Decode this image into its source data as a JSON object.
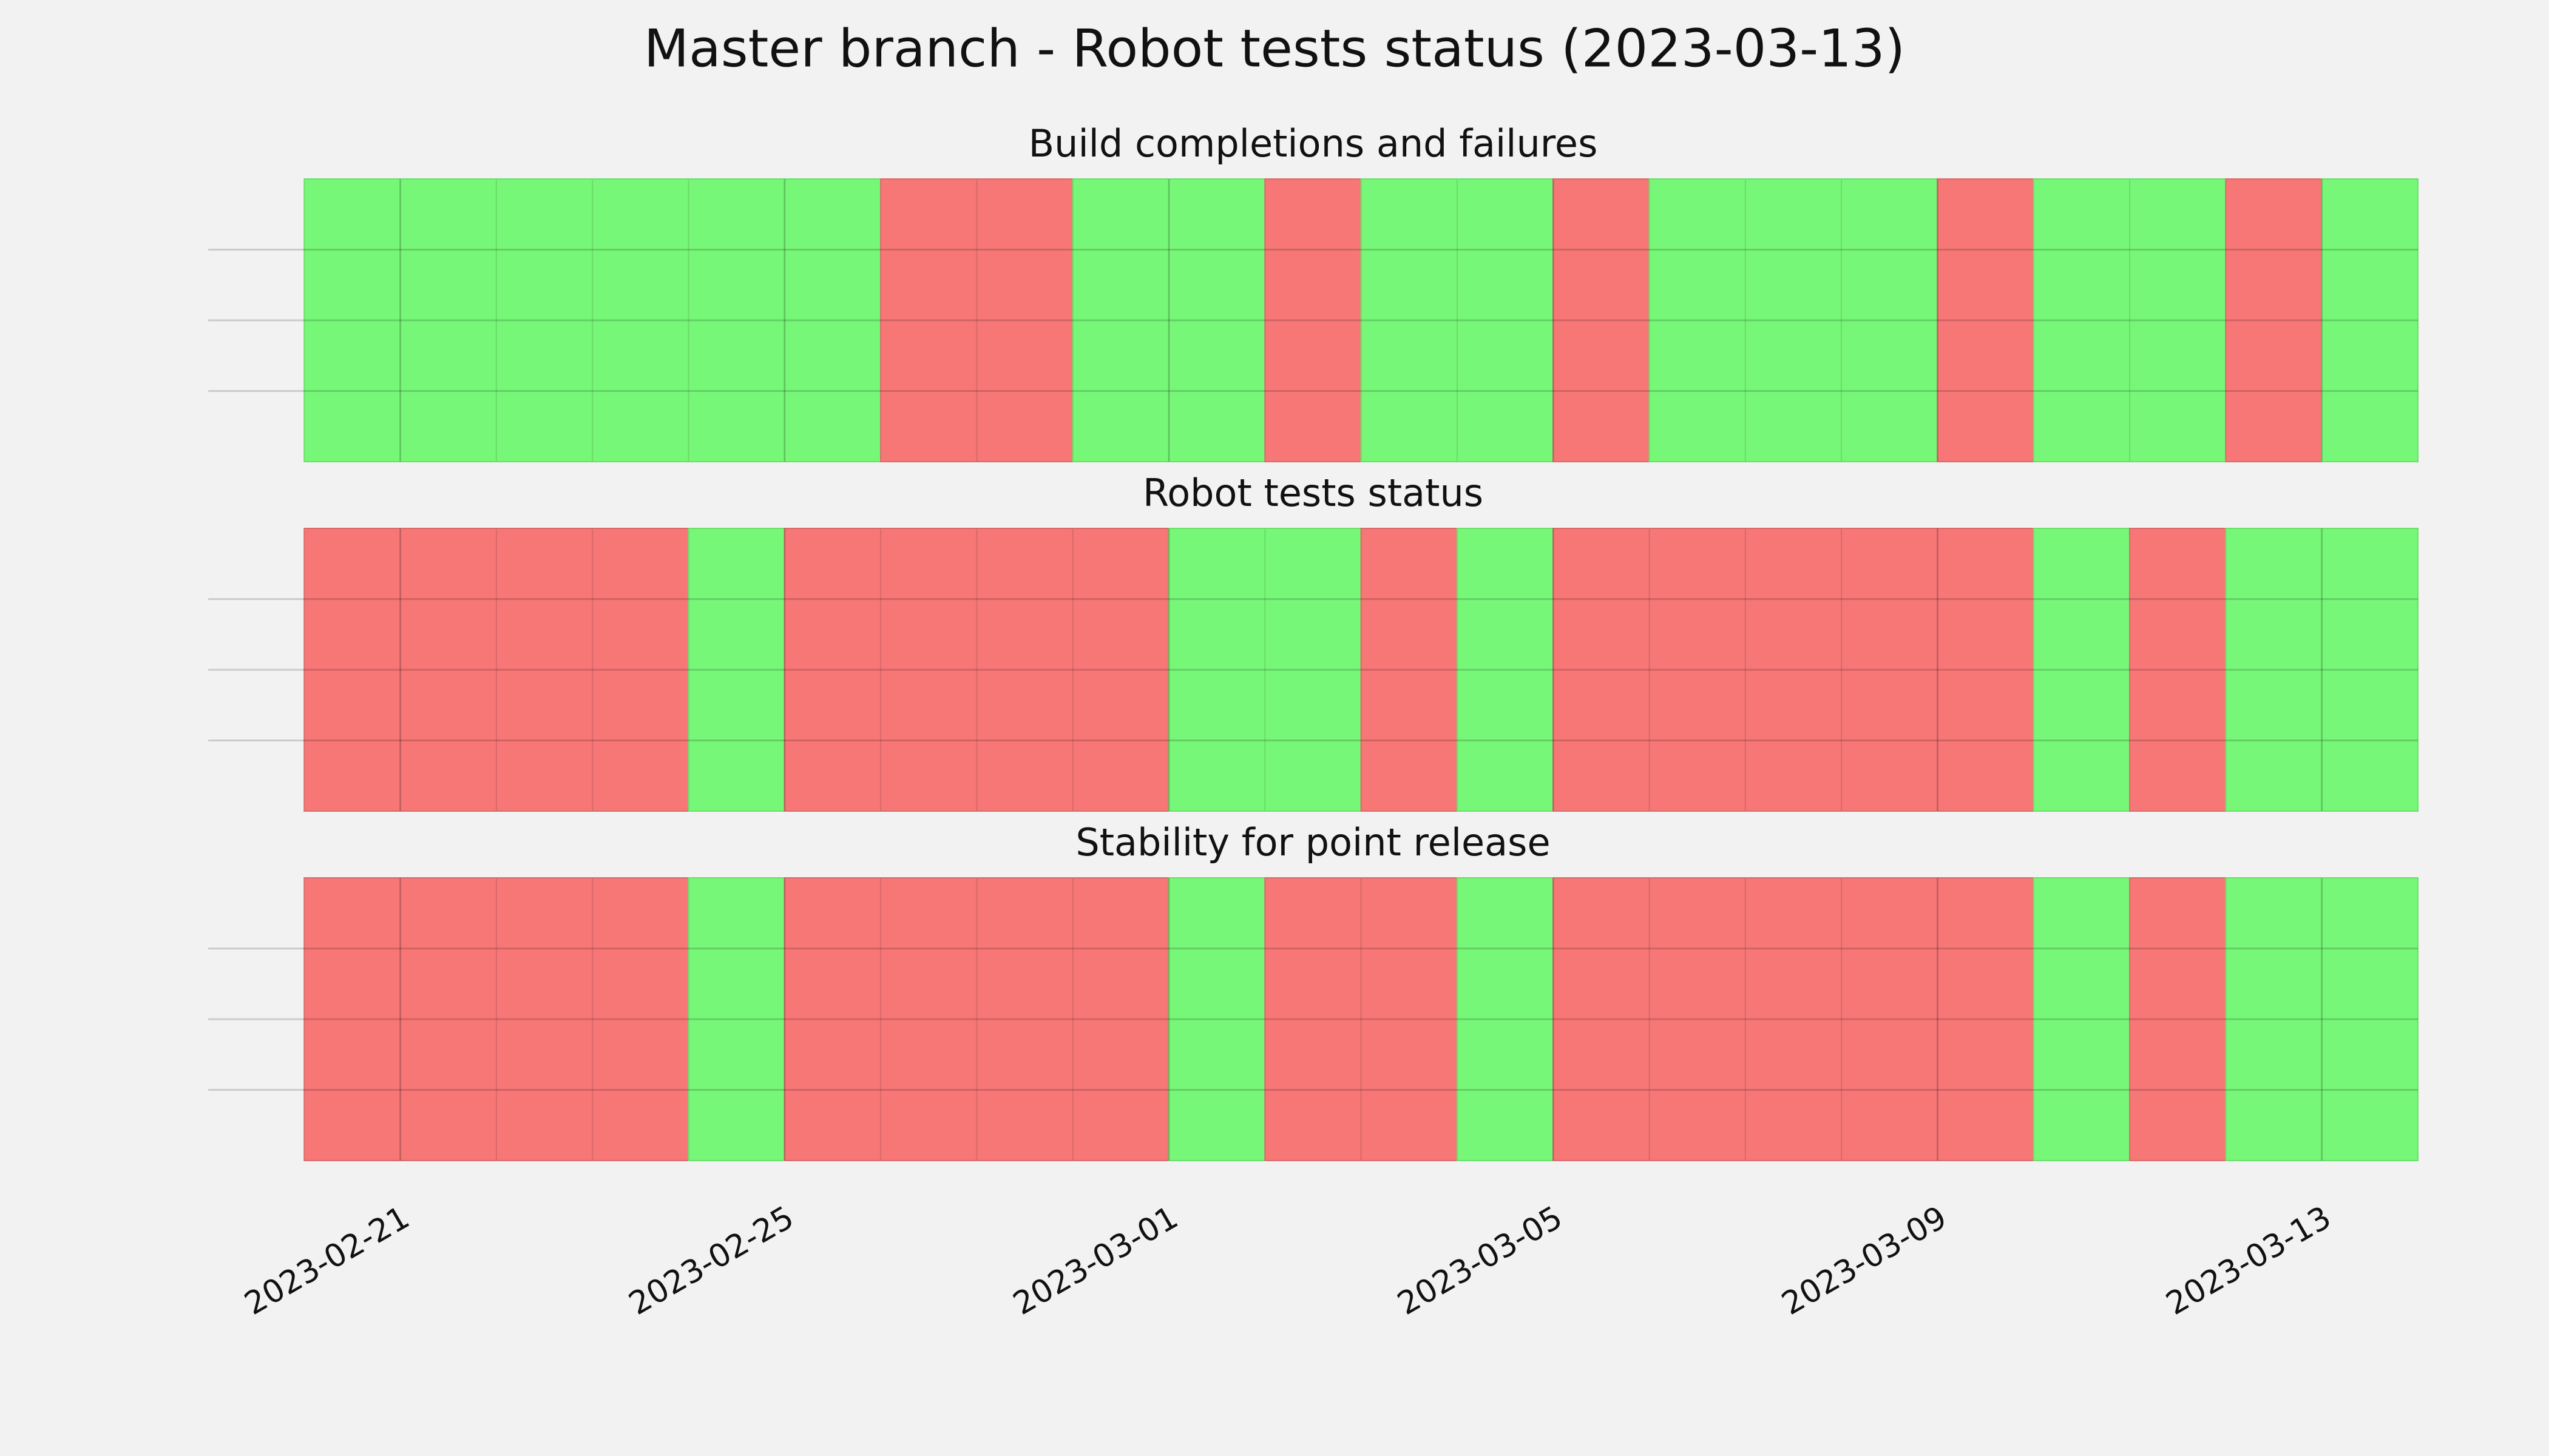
{
  "chart_data": {
    "type": "status-timeline",
    "title": "Master branch - Robot tests status (2023-03-13)",
    "categories": [
      "2023-02-20",
      "2023-02-21",
      "2023-02-22",
      "2023-02-23",
      "2023-02-24",
      "2023-02-25",
      "2023-02-26",
      "2023-02-27",
      "2023-02-28",
      "2023-03-01",
      "2023-03-02",
      "2023-03-03",
      "2023-03-04",
      "2023-03-05",
      "2023-03-06",
      "2023-03-07",
      "2023-03-08",
      "2023-03-09",
      "2023-03-10",
      "2023-03-11",
      "2023-03-12",
      "2023-03-13"
    ],
    "series": [
      {
        "name": "Build completions and failures",
        "values": [
          1,
          1,
          1,
          1,
          1,
          1,
          0,
          0,
          1,
          1,
          0,
          1,
          1,
          0,
          1,
          1,
          1,
          0,
          1,
          1,
          0,
          1
        ]
      },
      {
        "name": "Robot tests status",
        "values": [
          0,
          0,
          0,
          0,
          1,
          0,
          0,
          0,
          0,
          1,
          1,
          0,
          1,
          0,
          0,
          0,
          0,
          0,
          1,
          0,
          1,
          1
        ]
      },
      {
        "name": "Stability for point release",
        "values": [
          0,
          0,
          0,
          0,
          1,
          0,
          0,
          0,
          0,
          1,
          0,
          0,
          1,
          0,
          0,
          0,
          0,
          0,
          1,
          0,
          1,
          1
        ]
      }
    ],
    "pass_color": "#77f777",
    "fail_color": "#f77777",
    "xlim": [
      "2023-02-19",
      "2023-03-14"
    ],
    "xticks": [
      "2023-02-21",
      "2023-02-25",
      "2023-03-01",
      "2023-03-05",
      "2023-03-09",
      "2023-03-13"
    ],
    "ylim": [
      0,
      1
    ],
    "yticks": [
      0.25,
      0.5,
      0.75
    ],
    "grid": true
  }
}
